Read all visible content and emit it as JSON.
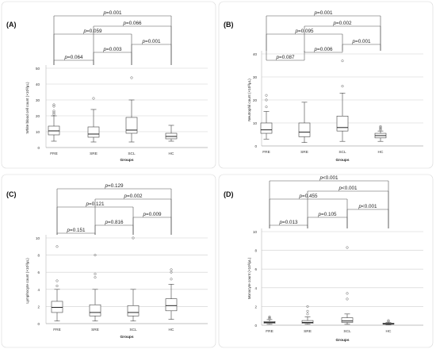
{
  "groups_label": "Groups",
  "chart_data": [
    {
      "type": "box",
      "panel_label": "(A)",
      "ylabel": "White blood cell count (×10³/μL)",
      "xlabel": "Groups",
      "categories": [
        "FRE",
        "SRE",
        "SCL",
        "HC"
      ],
      "ylim": [
        0,
        50
      ],
      "yticks": [
        0,
        10,
        20,
        30,
        40,
        50
      ],
      "grid": true,
      "boxes": [
        {
          "min": 4,
          "q1": 8,
          "median": 10.5,
          "q3": 13.5,
          "max": 20,
          "outliers": [
            21,
            22,
            23,
            26,
            27
          ]
        },
        {
          "min": 3.5,
          "q1": 6.5,
          "median": 8.5,
          "q3": 13,
          "max": 24,
          "outliers": [
            31
          ]
        },
        {
          "min": 3.5,
          "q1": 9,
          "median": 11,
          "q3": 19,
          "max": 30,
          "outliers": [
            44
          ]
        },
        {
          "min": 4,
          "q1": 5.5,
          "median": 7,
          "q3": 9,
          "max": 14,
          "outliers": []
        }
      ],
      "comparisons": [
        {
          "from": 0,
          "to": 3,
          "p": "p=0.001",
          "level": 6
        },
        {
          "from": 0,
          "to": 2,
          "p": "p=0.059",
          "level": 4
        },
        {
          "from": 1,
          "to": 3,
          "p": "p=0.066",
          "level": 5
        },
        {
          "from": 1,
          "to": 2,
          "p": "p=0.003",
          "level": 2
        },
        {
          "from": 2,
          "to": 3,
          "p": "p=0.001",
          "level": 3
        },
        {
          "from": 0,
          "to": 1,
          "p": "p=0.064",
          "level": 1
        }
      ]
    },
    {
      "type": "box",
      "panel_label": "(B)",
      "ylabel": "Neutrophil count (×10³/μL)",
      "xlabel": "Groups",
      "categories": [
        "FRE",
        "SRE",
        "SCL",
        "HC"
      ],
      "ylim": [
        0,
        40
      ],
      "yticks": [
        0,
        10,
        20,
        30,
        40
      ],
      "grid": true,
      "boxes": [
        {
          "min": 3,
          "q1": 5.5,
          "median": 7,
          "q3": 10,
          "max": 15,
          "outliers": [
            17,
            20,
            22
          ]
        },
        {
          "min": 1.5,
          "q1": 4,
          "median": 6,
          "q3": 10,
          "max": 19,
          "outliers": []
        },
        {
          "min": 2,
          "q1": 6.5,
          "median": 8,
          "q3": 13,
          "max": 23,
          "outliers": [
            26,
            37
          ]
        },
        {
          "min": 2,
          "q1": 3.5,
          "median": 4.5,
          "q3": 5.5,
          "max": 6.5,
          "outliers": [
            7,
            7.5,
            8,
            8.5
          ]
        }
      ],
      "comparisons": [
        {
          "from": 0,
          "to": 3,
          "p": "p=0.001",
          "level": 6
        },
        {
          "from": 1,
          "to": 3,
          "p": "p=0.002",
          "level": 5
        },
        {
          "from": 0,
          "to": 2,
          "p": "p=0.095",
          "level": 4
        },
        {
          "from": 1,
          "to": 2,
          "p": "p=0.006",
          "level": 2
        },
        {
          "from": 2,
          "to": 3,
          "p": "p=0.001",
          "level": 3
        },
        {
          "from": 0,
          "to": 1,
          "p": "p=0.087",
          "level": 1
        }
      ]
    },
    {
      "type": "box",
      "panel_label": "(C)",
      "ylabel": "Lymphocyte count (×10³/μL)",
      "xlabel": "Groups",
      "categories": [
        "FRE",
        "SRE",
        "SCL",
        "HC"
      ],
      "ylim": [
        0,
        10
      ],
      "yticks": [
        0,
        2,
        4,
        6,
        8,
        10
      ],
      "grid": true,
      "boxes": [
        {
          "min": 0.3,
          "q1": 1.3,
          "median": 1.9,
          "q3": 2.6,
          "max": 4,
          "outliers": [
            4.4,
            5,
            9
          ]
        },
        {
          "min": 0.3,
          "q1": 0.9,
          "median": 1.3,
          "q3": 2.2,
          "max": 4,
          "outliers": [
            5.4,
            5.8,
            8
          ]
        },
        {
          "min": 0.3,
          "q1": 0.9,
          "median": 1.3,
          "q3": 2.1,
          "max": 4,
          "outliers": [
            10
          ]
        },
        {
          "min": 0.5,
          "q1": 1.5,
          "median": 2.1,
          "q3": 2.9,
          "max": 4.6,
          "outliers": [
            5.2,
            6,
            6.3
          ]
        }
      ],
      "comparisons": [
        {
          "from": 0,
          "to": 3,
          "p": "p=0.129",
          "level": 6
        },
        {
          "from": 1,
          "to": 3,
          "p": "p=0.002",
          "level": 5
        },
        {
          "from": 0,
          "to": 2,
          "p": "p=0.121",
          "level": 4
        },
        {
          "from": 1,
          "to": 2,
          "p": "p=0.816",
          "level": 2
        },
        {
          "from": 2,
          "to": 3,
          "p": "p=0.009",
          "level": 3
        },
        {
          "from": 0,
          "to": 1,
          "p": "p=0.151",
          "level": 1
        }
      ]
    },
    {
      "type": "box",
      "panel_label": "(D)",
      "ylabel": "Monocyte count (×10³/μL)",
      "xlabel": "Groups",
      "categories": [
        "FRE",
        "SRE",
        "SCL",
        "HC"
      ],
      "ylim": [
        0,
        10
      ],
      "yticks": [
        0,
        2,
        4,
        6,
        8,
        10
      ],
      "grid": true,
      "boxes": [
        {
          "min": 0.1,
          "q1": 0.2,
          "median": 0.3,
          "q3": 0.4,
          "max": 0.6,
          "outliers": [
            0.7,
            0.8,
            0.9
          ]
        },
        {
          "min": 0.1,
          "q1": 0.2,
          "median": 0.3,
          "q3": 0.5,
          "max": 0.9,
          "outliers": [
            1.2,
            1.5,
            2
          ]
        },
        {
          "min": 0.1,
          "q1": 0.3,
          "median": 0.45,
          "q3": 0.8,
          "max": 1.2,
          "outliers": [
            2.8,
            3.4,
            8.3
          ]
        },
        {
          "min": 0.05,
          "q1": 0.1,
          "median": 0.15,
          "q3": 0.22,
          "max": 0.3,
          "outliers": [
            0.4,
            0.5
          ]
        }
      ],
      "comparisons": [
        {
          "from": 0,
          "to": 3,
          "p": "p<0.001",
          "level": 6
        },
        {
          "from": 1,
          "to": 3,
          "p": "p<0.001",
          "level": 5
        },
        {
          "from": 0,
          "to": 2,
          "p": "p=0.455",
          "level": 4
        },
        {
          "from": 1,
          "to": 2,
          "p": "p=0.105",
          "level": 2
        },
        {
          "from": 2,
          "to": 3,
          "p": "p<0.001",
          "level": 3
        },
        {
          "from": 0,
          "to": 1,
          "p": "p=0.013",
          "level": 1
        }
      ]
    }
  ]
}
